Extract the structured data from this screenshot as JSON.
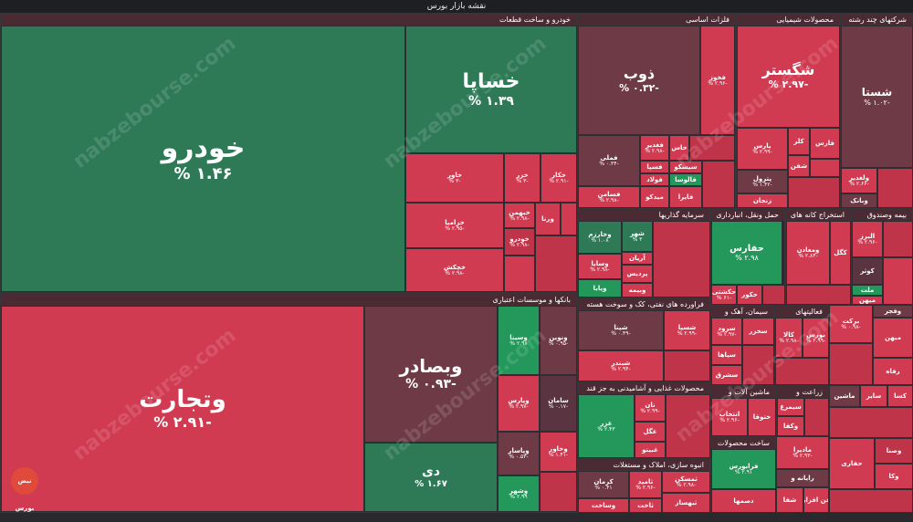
{
  "title": "نقشه بازار بورس",
  "watermark": "nabzebourse.com",
  "logo_text": "نبض بورس",
  "sectors": [
    {
      "key": "auto",
      "name": "خودرو و ساخت قطعات"
    },
    {
      "key": "metals",
      "name": "فلزات اساسی"
    },
    {
      "key": "chem",
      "name": "محصولات شیمیایی"
    },
    {
      "key": "multi",
      "name": "شرکتهای چند رشته"
    },
    {
      "key": "banks",
      "name": "بانکها و موسسات اعتباری"
    },
    {
      "key": "invest",
      "name": "سرمایه گذاریها"
    },
    {
      "key": "oil",
      "name": "حمل ونقل، انبارداری"
    },
    {
      "key": "mining",
      "name": "استخراج کانه های"
    },
    {
      "key": "insure",
      "name": "بیمه وصندوق"
    },
    {
      "key": "petro",
      "name": "فراورده های نفتی، کک و سوخت هسته"
    },
    {
      "key": "cement",
      "name": "سیمان، آهک و"
    },
    {
      "key": "other",
      "name": "فعالیتهای"
    },
    {
      "key": "food",
      "name": "محصولات غذایی و آشامیدنی به جز قند"
    },
    {
      "key": "machine",
      "name": "ماشین آلات و"
    },
    {
      "key": "agri",
      "name": "زراعت و"
    },
    {
      "key": "build",
      "name": "انبوه سازی، املاک و مستغلات"
    },
    {
      "key": "pharma",
      "name": "ساخت محصولات"
    }
  ],
  "tiles": [
    {
      "name": "خودرو",
      "pct": "% ۱.۴۶"
    },
    {
      "name": "خساپا",
      "pct": "% ۱.۳۹"
    },
    {
      "name": "خاور",
      "pct": "% ۳-"
    },
    {
      "name": "خزر",
      "pct": "% ۳-"
    },
    {
      "name": "خکار",
      "pct": "% ۲.۹۱-"
    },
    {
      "name": "خزامیا",
      "pct": "% ۲.۹۵-"
    },
    {
      "name": "خبهمن",
      "pct": "% ۲.۹۸-"
    },
    {
      "name": "ورنا",
      "pct": ""
    },
    {
      "name": "خچکش",
      "pct": "% ۲.۹۸-"
    },
    {
      "name": "خودرو",
      "pct": "% ۲.۹۸-"
    },
    {
      "name": "وتجارت",
      "pct": "% ۲.۹۱-"
    },
    {
      "name": "وبصادر",
      "pct": "% ۰.۹۳-"
    },
    {
      "name": "دی",
      "pct": "% ۱.۶۷"
    },
    {
      "name": "وسینا",
      "pct": "% ۲.۹۸"
    },
    {
      "name": "ونوین",
      "pct": "% ۰.۹۵-"
    },
    {
      "name": "وپارس",
      "pct": "% ۲.۹۷-"
    },
    {
      "name": "سامان",
      "pct": "% ۰.۱۷-"
    },
    {
      "name": "وخاور",
      "pct": "% ۱.۴۱-"
    },
    {
      "name": "وپاسار",
      "pct": "% ۰.۵۳-"
    },
    {
      "name": "وشهر",
      "pct": "% ۲.۹۹"
    },
    {
      "name": "ذوب",
      "pct": "% ۰.۳۲-"
    },
    {
      "name": "فخوز",
      "pct": "% ۲.۹۶-"
    },
    {
      "name": "فملی",
      "pct": "% ۰.۳۴-"
    },
    {
      "name": "فغدیر",
      "pct": "% ۲.۹۸-"
    },
    {
      "name": "خاس",
      "pct": ""
    },
    {
      "name": "فسپا",
      "pct": ""
    },
    {
      "name": "سیسکو",
      "pct": ""
    },
    {
      "name": "فولاد",
      "pct": ""
    },
    {
      "name": "فالوسا",
      "pct": ""
    },
    {
      "name": "فسامن",
      "pct": "% ۲.۹۸-"
    },
    {
      "name": "میدکو",
      "pct": ""
    },
    {
      "name": "فایرا",
      "pct": ""
    },
    {
      "name": "شگستر",
      "pct": "% ۲.۹۷-"
    },
    {
      "name": "پارس",
      "pct": "% ۲.۹۹-"
    },
    {
      "name": "کلر",
      "pct": ""
    },
    {
      "name": "شفن",
      "pct": ""
    },
    {
      "name": "پترول",
      "pct": "% ۱.۴۲-"
    },
    {
      "name": "زنجان",
      "pct": ""
    },
    {
      "name": "فارس",
      "pct": ""
    },
    {
      "name": "شستا",
      "pct": "% ۱.۰۲-"
    },
    {
      "name": "ولغدیر",
      "pct": "% ۲.۶۶-"
    },
    {
      "name": "وبانک",
      "pct": ""
    },
    {
      "name": "وخارزم",
      "pct": "% ۱.۰۸"
    },
    {
      "name": "شهر",
      "pct": "% ۳"
    },
    {
      "name": "آریان",
      "pct": ""
    },
    {
      "name": "وسایا",
      "pct": "% ۲.۹۸-"
    },
    {
      "name": "پردیس",
      "pct": ""
    },
    {
      "name": "وبیمه",
      "pct": ""
    },
    {
      "name": "ویایا",
      "pct": ""
    },
    {
      "name": "حفارس",
      "pct": "% ۲.۹۸"
    },
    {
      "name": "حکشتی",
      "pct": "% ۶۱-"
    },
    {
      "name": "حکور",
      "pct": ""
    },
    {
      "name": "ومعادن",
      "pct": "% ۲.۸۴-"
    },
    {
      "name": "کگل",
      "pct": ""
    },
    {
      "name": "البرز",
      "pct": "% ۲.۹۶-"
    },
    {
      "name": "کوثر",
      "pct": ""
    },
    {
      "name": "ملت",
      "pct": ""
    },
    {
      "name": "میهن",
      "pct": ""
    },
    {
      "name": "شپنا",
      "pct": "% ۰.۴۹-"
    },
    {
      "name": "شسپا",
      "pct": "% ۲.۹۹-"
    },
    {
      "name": "شبندر",
      "pct": "% ۲.۹۴-"
    },
    {
      "name": "سرود",
      "pct": "% ۲.۹۷-"
    },
    {
      "name": "سخزر",
      "pct": ""
    },
    {
      "name": "سپاها",
      "pct": ""
    },
    {
      "name": "سشرق",
      "pct": ""
    },
    {
      "name": "کالا",
      "pct": "% ۲.۹۸-"
    },
    {
      "name": "بورس",
      "pct": "% ۲.۹۹-"
    },
    {
      "name": "برکت",
      "pct": "% ۰.۹۸-"
    },
    {
      "name": "میهن",
      "pct": ""
    },
    {
      "name": "رفاه",
      "pct": ""
    },
    {
      "name": "وفجر",
      "pct": ""
    },
    {
      "name": "غزر",
      "pct": "% ۲.۴۳"
    },
    {
      "name": "نان",
      "pct": "% ۲.۹۹-"
    },
    {
      "name": "غگل",
      "pct": ""
    },
    {
      "name": "غبینو",
      "pct": ""
    },
    {
      "name": "انتخاب",
      "pct": "% ۲.۹۶-"
    },
    {
      "name": "ختوقا",
      "pct": ""
    },
    {
      "name": "سیمرغ",
      "pct": ""
    },
    {
      "name": "زملارد",
      "pct": ""
    },
    {
      "name": "وکفا",
      "pct": ""
    },
    {
      "name": "تنوفا",
      "pct": ""
    },
    {
      "name": "تولید",
      "pct": ""
    },
    {
      "name": "ماشین",
      "pct": ""
    },
    {
      "name": "کرمان",
      "pct": "% ۰.۴۱"
    },
    {
      "name": "ثامید",
      "pct": "% ۲.۹۶-"
    },
    {
      "name": "ثمسکن",
      "pct": "% ۲.۹۸-"
    },
    {
      "name": "ثبهساز",
      "pct": ""
    },
    {
      "name": "وساخت",
      "pct": ""
    },
    {
      "name": "ثاخت",
      "pct": ""
    },
    {
      "name": "فرابورس",
      "pct": "% ۲.۹۱"
    },
    {
      "name": "مادیرا",
      "pct": "% ۲.۹۳-"
    },
    {
      "name": "رایانه و",
      "pct": ""
    },
    {
      "name": "شفا",
      "pct": ""
    },
    {
      "name": "فن افزار",
      "pct": ""
    },
    {
      "name": "دصمها",
      "pct": ""
    },
    {
      "name": "حفاری",
      "pct": ""
    },
    {
      "name": "وصنا",
      "pct": ""
    },
    {
      "name": "وکا",
      "pct": ""
    },
    {
      "name": "وبملت",
      "pct": ""
    },
    {
      "name": "سایر",
      "pct": ""
    },
    {
      "name": "کسا",
      "pct": ""
    }
  ]
}
